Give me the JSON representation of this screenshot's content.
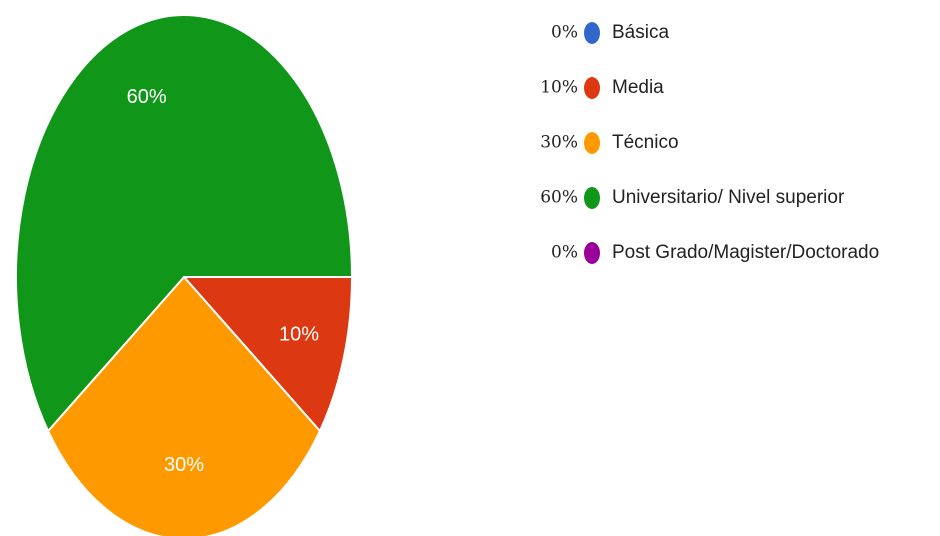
{
  "chart_data": {
    "type": "pie",
    "categories": [
      "Básica",
      "Media",
      "Técnico",
      "Universitario/ Nivel superior",
      "Post Grado/Magister/Doctorado"
    ],
    "values": [
      0,
      10,
      30,
      60,
      0
    ],
    "value_labels": [
      "0%",
      "10%",
      "30%",
      "60%",
      "0%"
    ],
    "colors": [
      "#3366cc",
      "#dc3912",
      "#ff9900",
      "#109618",
      "#990099"
    ],
    "legend": "right"
  }
}
